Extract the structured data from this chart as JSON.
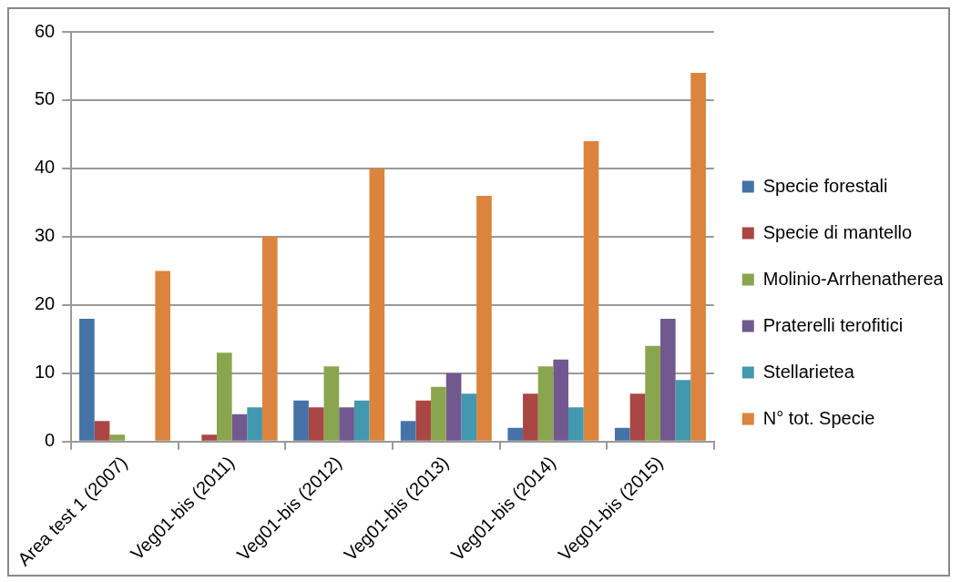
{
  "chart_data": {
    "type": "bar",
    "categories": [
      "Area test 1 (2007)",
      "Veg01-bis (2011)",
      "Veg01-bis (2012)",
      "Veg01-bis (2013)",
      "Veg01-bis (2014)",
      "Veg01-bis (2015)"
    ],
    "series": [
      {
        "name": "Specie forestali",
        "color": "#4572a7",
        "values": [
          18,
          0,
          6,
          3,
          2,
          2
        ]
      },
      {
        "name": "Specie di mantello",
        "color": "#aa4643",
        "values": [
          3,
          1,
          5,
          6,
          7,
          7
        ]
      },
      {
        "name": "Molinio-Arrhenatherea",
        "color": "#89a54e",
        "values": [
          1,
          13,
          11,
          8,
          11,
          14
        ]
      },
      {
        "name": "Praterelli terofitici",
        "color": "#71588f",
        "values": [
          0,
          4,
          5,
          10,
          12,
          18
        ]
      },
      {
        "name": "Stellarietea",
        "color": "#4198af",
        "values": [
          0,
          5,
          6,
          7,
          5,
          9
        ]
      },
      {
        "name": "N° tot. Specie",
        "color": "#db843d",
        "values": [
          25,
          30,
          40,
          36,
          44,
          54
        ]
      }
    ],
    "ylim": [
      0,
      60
    ],
    "yticks": [
      0,
      10,
      20,
      30,
      40,
      50,
      60
    ],
    "grid": "y",
    "legend": "right"
  }
}
